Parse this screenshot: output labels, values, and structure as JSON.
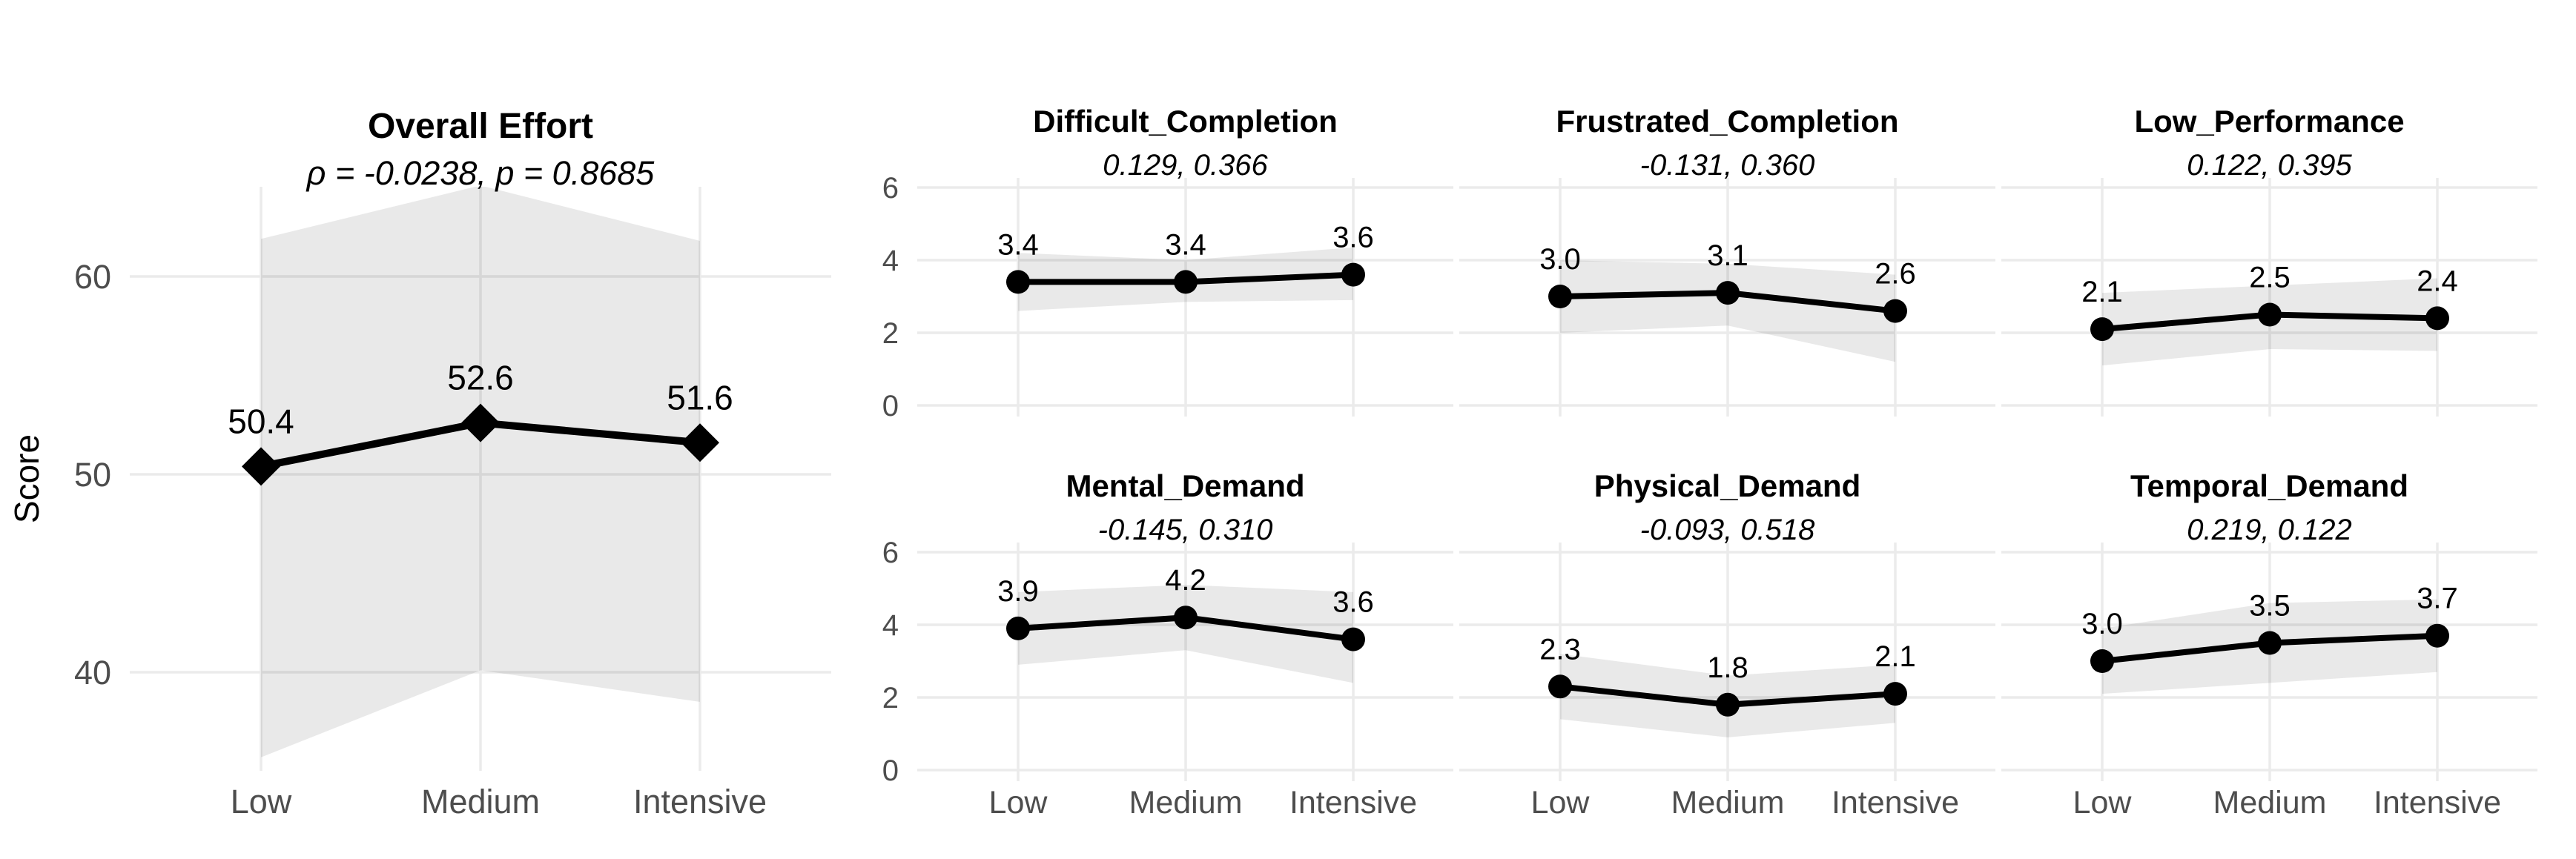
{
  "figure": {
    "background": "#ffffff",
    "colors": {
      "line": "#000000",
      "marker": "#000000",
      "ribbon": "rgba(0,0,0,0.085)",
      "grid": "#ebebeb",
      "tick_text": "#4d4d4d",
      "title_text": "#000000"
    },
    "x_categories": [
      "Low",
      "Medium",
      "Intensive"
    ],
    "grid": "major-only",
    "legend": "none"
  },
  "chart_data": [
    {
      "id": "overall_effort",
      "type": "line",
      "title": "Overall Effort",
      "subtitle": "ρ = -0.0238, p = 0.8685",
      "ylabel": "Score",
      "categories": [
        "Low",
        "Medium",
        "Intensive"
      ],
      "values": [
        50.4,
        52.6,
        51.6
      ],
      "labels": [
        "50.4",
        "52.6",
        "51.6"
      ],
      "ribbon_upper": [
        61.9,
        64.6,
        61.8
      ],
      "ribbon_lower": [
        35.7,
        40.1,
        38.5
      ],
      "yticks": [
        40,
        50,
        60
      ],
      "ytick_labels": [
        "40",
        "50",
        "60"
      ],
      "ylim": [
        35.0,
        64.5
      ],
      "marker": "diamond"
    },
    {
      "id": "difficult_completion",
      "type": "line",
      "title": "Difficult_Completion",
      "subtitle": "0.129, 0.366",
      "ylabel": "",
      "categories": [
        "Low",
        "Medium",
        "Intensive"
      ],
      "values": [
        3.4,
        3.4,
        3.6
      ],
      "labels": [
        "3.4",
        "3.4",
        "3.6"
      ],
      "ribbon_upper": [
        4.2,
        4.0,
        4.35
      ],
      "ribbon_lower": [
        2.6,
        2.85,
        2.9
      ],
      "yticks": [
        0,
        2,
        4,
        6
      ],
      "ytick_labels": [
        "0",
        "2",
        "4",
        "6"
      ],
      "ylim": [
        -0.3,
        6.3
      ],
      "marker": "circle"
    },
    {
      "id": "frustrated_completion",
      "type": "line",
      "title": "Frustrated_Completion",
      "subtitle": "-0.131, 0.360",
      "ylabel": "",
      "categories": [
        "Low",
        "Medium",
        "Intensive"
      ],
      "values": [
        3.0,
        3.1,
        2.6
      ],
      "labels": [
        "3.0",
        "3.1",
        "2.6"
      ],
      "ribbon_upper": [
        4.0,
        3.9,
        3.6
      ],
      "ribbon_lower": [
        2.0,
        2.2,
        1.2
      ],
      "yticks": [
        0,
        2,
        4,
        6
      ],
      "ytick_labels": [
        "0",
        "2",
        "4",
        "6"
      ],
      "ylim": [
        -0.3,
        6.3
      ],
      "marker": "circle"
    },
    {
      "id": "low_performance",
      "type": "line",
      "title": "Low_Performance",
      "subtitle": "0.122, 0.395",
      "ylabel": "",
      "categories": [
        "Low",
        "Medium",
        "Intensive"
      ],
      "values": [
        2.1,
        2.5,
        2.4
      ],
      "labels": [
        "2.1",
        "2.5",
        "2.4"
      ],
      "ribbon_upper": [
        3.1,
        3.3,
        3.5
      ],
      "ribbon_lower": [
        1.1,
        1.55,
        1.5
      ],
      "yticks": [
        0,
        2,
        4,
        6
      ],
      "ytick_labels": [
        "0",
        "2",
        "4",
        "6"
      ],
      "ylim": [
        -0.3,
        6.3
      ],
      "marker": "circle"
    },
    {
      "id": "mental_demand",
      "type": "line",
      "title": "Mental_Demand",
      "subtitle": "-0.145, 0.310",
      "ylabel": "",
      "categories": [
        "Low",
        "Medium",
        "Intensive"
      ],
      "values": [
        3.9,
        4.2,
        3.6
      ],
      "labels": [
        "3.9",
        "4.2",
        "3.6"
      ],
      "ribbon_upper": [
        4.9,
        5.1,
        4.9
      ],
      "ribbon_lower": [
        2.9,
        3.3,
        2.4
      ],
      "yticks": [
        0,
        2,
        4,
        6
      ],
      "ytick_labels": [
        "0",
        "2",
        "4",
        "6"
      ],
      "ylim": [
        -0.3,
        6.3
      ],
      "marker": "circle"
    },
    {
      "id": "physical_demand",
      "type": "line",
      "title": "Physical_Demand",
      "subtitle": "-0.093, 0.518",
      "ylabel": "",
      "categories": [
        "Low",
        "Medium",
        "Intensive"
      ],
      "values": [
        2.3,
        1.8,
        2.1
      ],
      "labels": [
        "2.3",
        "1.8",
        "2.1"
      ],
      "ribbon_upper": [
        3.2,
        2.6,
        2.9
      ],
      "ribbon_lower": [
        1.4,
        0.9,
        1.3
      ],
      "yticks": [
        0,
        2,
        4,
        6
      ],
      "ytick_labels": [
        "0",
        "2",
        "4",
        "6"
      ],
      "ylim": [
        -0.3,
        6.3
      ],
      "marker": "circle"
    },
    {
      "id": "temporal_demand",
      "type": "line",
      "title": "Temporal_Demand",
      "subtitle": "0.219, 0.122",
      "ylabel": "",
      "categories": [
        "Low",
        "Medium",
        "Intensive"
      ],
      "values": [
        3.0,
        3.5,
        3.7
      ],
      "labels": [
        "3.0",
        "3.5",
        "3.7"
      ],
      "ribbon_upper": [
        3.9,
        4.6,
        4.7
      ],
      "ribbon_lower": [
        2.1,
        2.4,
        2.7
      ],
      "yticks": [
        0,
        2,
        4,
        6
      ],
      "ytick_labels": [
        "0",
        "2",
        "4",
        "6"
      ],
      "ylim": [
        -0.3,
        6.3
      ],
      "marker": "circle"
    }
  ]
}
